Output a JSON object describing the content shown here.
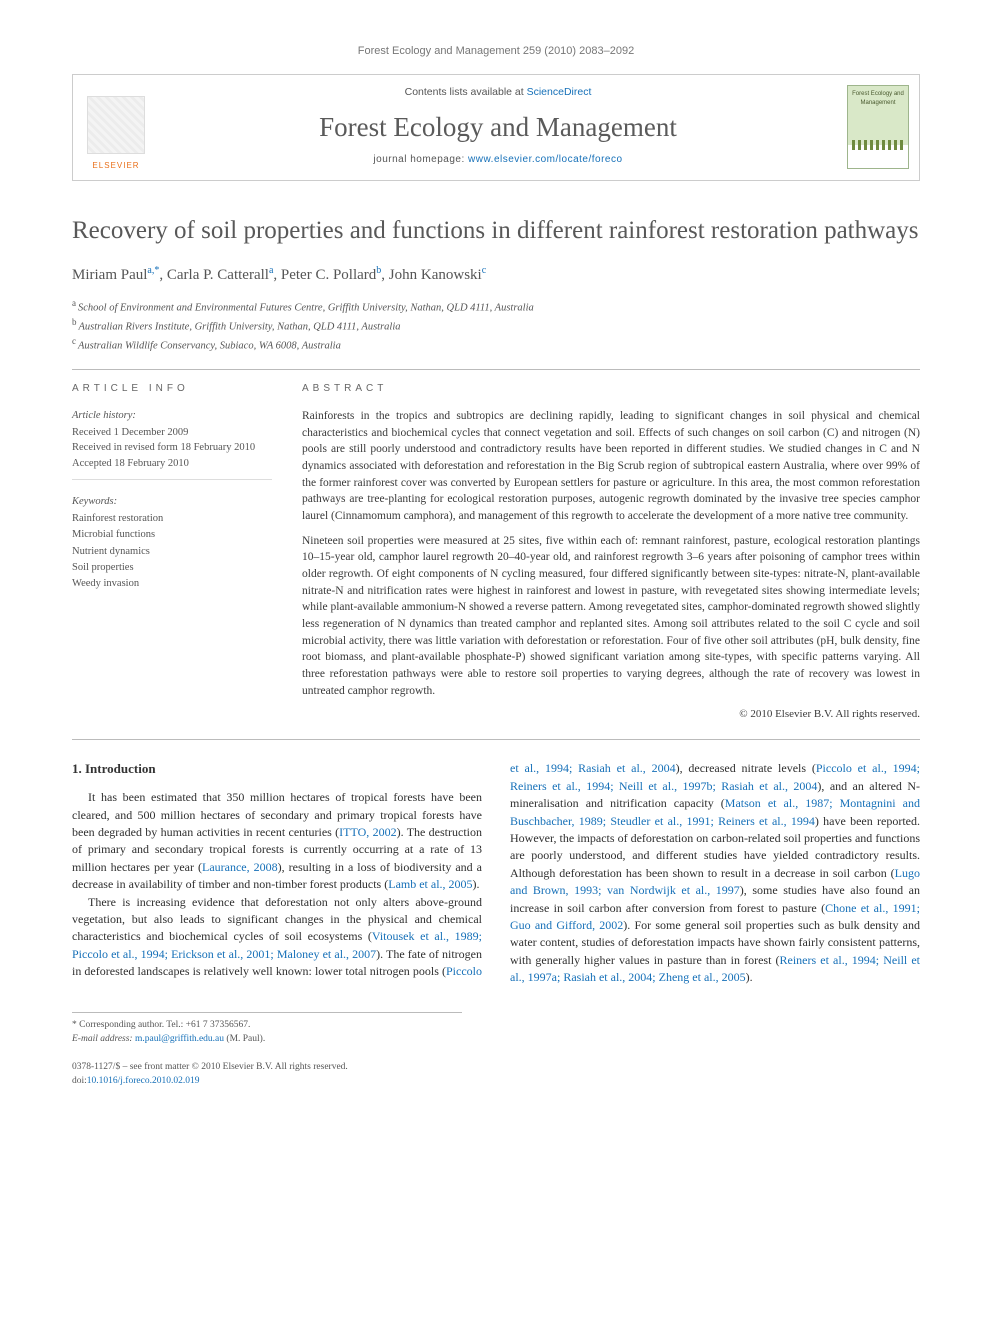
{
  "running_head": "Forest Ecology and Management 259 (2010) 2083–2092",
  "header": {
    "contents_prefix": "Contents lists available at ",
    "contents_link": "ScienceDirect",
    "journal": "Forest Ecology and Management",
    "homepage_prefix": "journal homepage: ",
    "homepage_url": "www.elsevier.com/locate/foreco",
    "publisher_logo_text": "ELSEVIER",
    "cover_small_text": "Forest Ecology and Management"
  },
  "title": "Recovery of soil properties and functions in different rainforest restoration pathways",
  "authors_html_parts": {
    "a1_name": "Miriam Paul",
    "a1_sup": "a,*",
    "a2_name": "Carla P. Catterall",
    "a2_sup": "a",
    "a3_name": "Peter C. Pollard",
    "a3_sup": "b",
    "a4_name": "John Kanowski",
    "a4_sup": "c"
  },
  "affiliations": {
    "a": "School of Environment and Environmental Futures Centre, Griffith University, Nathan, QLD 4111, Australia",
    "b": "Australian Rivers Institute, Griffith University, Nathan, QLD 4111, Australia",
    "c": "Australian Wildlife Conservancy, Subiaco, WA 6008, Australia"
  },
  "info": {
    "heading": "article info",
    "history_title": "Article history:",
    "received": "Received 1 December 2009",
    "revised": "Received in revised form 18 February 2010",
    "accepted": "Accepted 18 February 2010",
    "keywords_title": "Keywords:",
    "keywords": [
      "Rainforest restoration",
      "Microbial functions",
      "Nutrient dynamics",
      "Soil properties",
      "Weedy invasion"
    ]
  },
  "abstract": {
    "heading": "abstract",
    "p1": "Rainforests in the tropics and subtropics are declining rapidly, leading to significant changes in soil physical and chemical characteristics and biochemical cycles that connect vegetation and soil. Effects of such changes on soil carbon (C) and nitrogen (N) pools are still poorly understood and contradictory results have been reported in different studies. We studied changes in C and N dynamics associated with deforestation and reforestation in the Big Scrub region of subtropical eastern Australia, where over 99% of the former rainforest cover was converted by European settlers for pasture or agriculture. In this area, the most common reforestation pathways are tree-planting for ecological restoration purposes, autogenic regrowth dominated by the invasive tree species camphor laurel (Cinnamomum camphora), and management of this regrowth to accelerate the development of a more native tree community.",
    "p2": "Nineteen soil properties were measured at 25 sites, five within each of: remnant rainforest, pasture, ecological restoration plantings 10–15-year old, camphor laurel regrowth 20–40-year old, and rainforest regrowth 3–6 years after poisoning of camphor trees within older regrowth. Of eight components of N cycling measured, four differed significantly between site-types: nitrate-N, plant-available nitrate-N and nitrification rates were highest in rainforest and lowest in pasture, with revegetated sites showing intermediate levels; while plant-available ammonium-N showed a reverse pattern. Among revegetated sites, camphor-dominated regrowth showed slightly less regeneration of N dynamics than treated camphor and replanted sites. Among soil attributes related to the soil C cycle and soil microbial activity, there was little variation with deforestation or reforestation. Four of five other soil attributes (pH, bulk density, fine root biomass, and plant-available phosphate-P) showed significant variation among site-types, with specific patterns varying. All three reforestation pathways were able to restore soil properties to varying degrees, although the rate of recovery was lowest in untreated camphor regrowth.",
    "copyright": "© 2010 Elsevier B.V. All rights reserved."
  },
  "body": {
    "section_heading": "1.  Introduction",
    "p1_a": "It has been estimated that 350 million hectares of tropical forests have been cleared, and 500 million hectares of secondary and primary tropical forests have been degraded by human activities in recent centuries (",
    "c1": "ITTO, 2002",
    "p1_b": "). The destruction of primary and secondary tropical forests is currently occurring at a rate of 13 million hectares per year (",
    "c2": "Laurance, 2008",
    "p1_c": "), resulting in a loss of biodiversity and a decrease in availability of timber and non-timber forest products (",
    "c3": "Lamb et al., 2005",
    "p1_d": ").",
    "p2_a": "There is increasing evidence that deforestation not only alters above-ground vegetation, but also leads to significant changes in the physical and chemical characteristics and biochemical cycles of soil ecosystems (",
    "c4": "Vitousek et al., 1989; Piccolo et al., 1994; Erickson",
    "p3_a_cont": "et al., 2001; Maloney et al., 2007",
    "p3_b": "). The fate of nitrogen in deforested landscapes is relatively well known: lower total nitrogen pools (",
    "c5": "Piccolo et al., 1994; Rasiah et al., 2004",
    "p3_c": "), decreased nitrate levels (",
    "c6": "Piccolo et al., 1994; Reiners et al., 1994; Neill et al., 1997b; Rasiah et al., 2004",
    "p3_d": "), and an altered N-mineralisation and nitrification capacity (",
    "c7": "Matson et al., 1987; Montagnini and Buschbacher, 1989; Steudler et al., 1991; Reiners et al., 1994",
    "p3_e": ") have been reported. However, the impacts of deforestation on carbon-related soil properties and functions are poorly understood, and different studies have yielded contradictory results. Although deforestation has been shown to result in a decrease in soil carbon (",
    "c8": "Lugo and Brown, 1993; van Nordwijk et al., 1997",
    "p3_f": "), some studies have also found an increase in soil carbon after conversion from forest to pasture (",
    "c9": "Chone et al., 1991; Guo and Gifford, 2002",
    "p3_g": "). For some general soil properties such as bulk density and water content, studies of deforestation impacts have shown fairly consistent patterns, with generally higher values in pasture than in forest (",
    "c10": "Reiners et al., 1994; Neill et al., 1997a; Rasiah et al., 2004; Zheng et al., 2005",
    "p3_h": ")."
  },
  "footnotes": {
    "corr_label": "* Corresponding author. Tel.: +61 7 37356567.",
    "email_label": "E-mail address:",
    "email": "m.paul@griffith.edu.au",
    "email_who": "(M. Paul)."
  },
  "issn": {
    "line1": "0378-1127/$ – see front matter © 2010 Elsevier B.V. All rights reserved.",
    "doi_label": "doi:",
    "doi": "10.1016/j.foreco.2010.02.019"
  },
  "colors": {
    "link": "#1670b8",
    "elsevier_orange": "#e9711c",
    "text_gray": "#555555",
    "rule": "#bbbbbb"
  }
}
